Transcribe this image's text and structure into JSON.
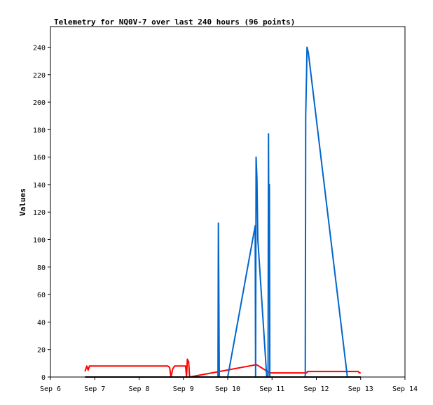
{
  "chart_data": {
    "type": "line",
    "title": "Telemetry for NQ0V-7 over last 240 hours (96 points)",
    "ylabel": "Values",
    "xlabel": "",
    "xlim": [
      6.0,
      14.0
    ],
    "ylim": [
      0,
      255
    ],
    "x_ticks": [
      {
        "value": 6,
        "label": "Sep 6"
      },
      {
        "value": 7,
        "label": "Sep 7"
      },
      {
        "value": 8,
        "label": "Sep 8"
      },
      {
        "value": 9,
        "label": "Sep 9"
      },
      {
        "value": 10,
        "label": "Sep 10"
      },
      {
        "value": 11,
        "label": "Sep 11"
      },
      {
        "value": 12,
        "label": "Sep 12"
      },
      {
        "value": 13,
        "label": "Sep 13"
      },
      {
        "value": 14,
        "label": "Sep 14"
      }
    ],
    "y_ticks": [
      0,
      20,
      40,
      60,
      80,
      100,
      120,
      140,
      160,
      180,
      200,
      220,
      240
    ],
    "grid": false,
    "series": [
      {
        "color": "#ff0000",
        "points": [
          [
            6.78,
            4
          ],
          [
            6.82,
            8
          ],
          [
            6.85,
            5
          ],
          [
            6.88,
            8
          ],
          [
            6.92,
            8
          ],
          [
            8.0,
            8
          ],
          [
            8.65,
            8
          ],
          [
            8.69,
            7
          ],
          [
            8.72,
            0
          ],
          [
            8.76,
            6
          ],
          [
            8.8,
            8
          ],
          [
            9.05,
            8
          ],
          [
            9.07,
            0
          ],
          [
            9.09,
            13
          ],
          [
            9.12,
            11
          ],
          [
            9.14,
            0
          ],
          [
            10.65,
            9
          ],
          [
            10.8,
            6
          ],
          [
            10.95,
            3
          ],
          [
            11.5,
            3
          ],
          [
            11.78,
            3
          ],
          [
            11.8,
            4
          ],
          [
            12.5,
            4
          ],
          [
            12.95,
            4
          ],
          [
            12.97,
            3
          ],
          [
            13.0,
            3
          ]
        ]
      },
      {
        "color": "#0066cc",
        "points": [
          [
            9.78,
            0
          ],
          [
            9.79,
            112
          ],
          [
            9.8,
            56
          ],
          [
            9.81,
            0
          ],
          [
            10.0,
            0
          ],
          [
            10.62,
            110
          ],
          [
            10.63,
            0
          ],
          [
            10.64,
            160
          ],
          [
            10.66,
            145
          ],
          [
            10.68,
            100
          ],
          [
            10.88,
            0
          ],
          [
            10.91,
            0
          ],
          [
            10.92,
            177
          ],
          [
            10.93,
            88
          ],
          [
            10.94,
            140
          ],
          [
            10.95,
            0
          ],
          [
            11.75,
            0
          ],
          [
            11.76,
            190
          ],
          [
            11.78,
            222
          ],
          [
            11.79,
            240
          ],
          [
            11.82,
            236
          ],
          [
            12.7,
            0
          ]
        ]
      },
      {
        "color": "#000000",
        "points": [
          [
            6.78,
            0
          ],
          [
            13.0,
            0
          ]
        ]
      }
    ]
  }
}
